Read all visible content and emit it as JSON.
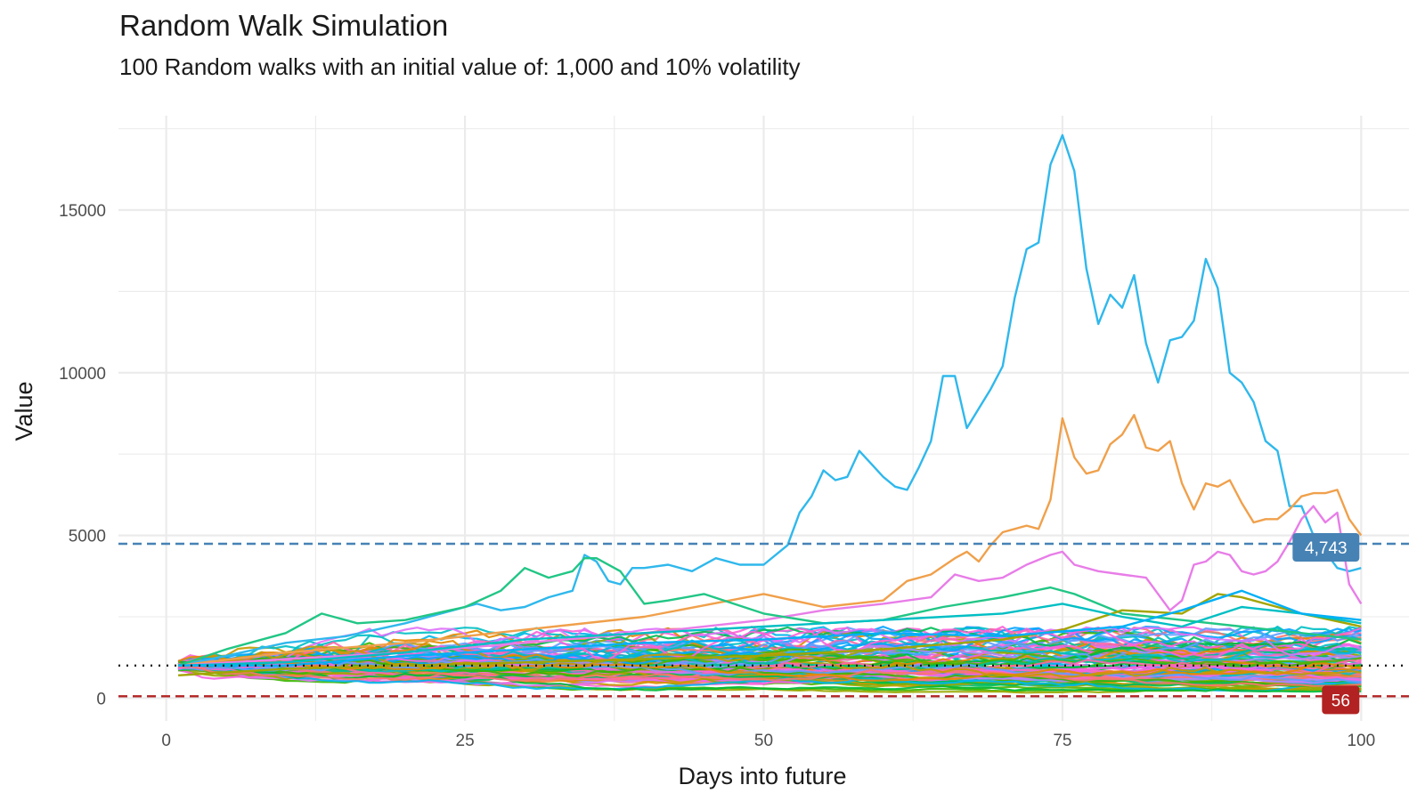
{
  "chart_data": {
    "type": "line",
    "title": "Random Walk Simulation",
    "subtitle": "100 Random walks with an initial value of: 1,000 and 10% volatility",
    "xlabel": "Days into future",
    "ylabel": "Value",
    "xlim": [
      -4,
      104
    ],
    "ylim": [
      -700,
      17900
    ],
    "x_ticks": [
      0,
      25,
      50,
      75,
      100
    ],
    "y_ticks": [
      0,
      5000,
      10000,
      15000
    ],
    "x_tick_labels": [
      "0",
      "25",
      "50",
      "75",
      "100"
    ],
    "y_tick_labels": [
      "0",
      "5000",
      "10000",
      "15000"
    ],
    "grid": true,
    "legend": "none",
    "n_walks": 100,
    "initial_value": 1000,
    "volatility_pct": 10,
    "reference_lines": [
      {
        "value": 4743,
        "label": "4,743",
        "style": "dashed",
        "color": "#4682b4"
      },
      {
        "value": 1000,
        "label": "",
        "style": "dotted",
        "color": "#1a1a1a"
      },
      {
        "value": 56,
        "label": "56",
        "style": "dashed",
        "color": "#b22222"
      }
    ],
    "highlighted_series": [
      {
        "color": "#2fb8ec",
        "x": [
          1,
          5,
          10,
          15,
          20,
          22,
          24,
          26,
          28,
          30,
          32,
          34,
          35,
          36,
          37,
          38,
          39,
          40,
          42,
          44,
          46,
          48,
          50,
          52,
          53,
          54,
          55,
          56,
          57,
          58,
          59,
          60,
          61,
          62,
          63,
          64,
          65,
          66,
          67,
          68,
          69,
          70,
          71,
          72,
          73,
          74,
          75,
          76,
          77,
          78,
          79,
          80,
          81,
          82,
          83,
          84,
          85,
          86,
          87,
          88,
          89,
          90,
          91,
          92,
          93,
          94,
          95,
          96,
          97,
          98,
          99,
          100
        ],
        "y": [
          1000,
          1300,
          1700,
          1900,
          2300,
          2500,
          2700,
          2900,
          2700,
          2800,
          3100,
          3300,
          4400,
          4200,
          3600,
          3500,
          4000,
          4000,
          4100,
          3900,
          4300,
          4100,
          4100,
          4700,
          5700,
          6200,
          7000,
          6700,
          6800,
          7600,
          7200,
          6800,
          6500,
          6400,
          7100,
          7900,
          9900,
          9900,
          8300,
          8900,
          9500,
          10200,
          12300,
          13800,
          14000,
          16400,
          17300,
          16200,
          13200,
          11500,
          12400,
          12000,
          13000,
          10900,
          9700,
          11000,
          11100,
          11600,
          13500,
          12600,
          10000,
          9700,
          9100,
          7900,
          7600,
          5900,
          5900,
          5000,
          4500,
          4000,
          3900,
          4000
        ]
      },
      {
        "color": "#f0a04b",
        "x": [
          1,
          10,
          20,
          30,
          40,
          50,
          55,
          60,
          62,
          64,
          66,
          67,
          68,
          69,
          70,
          71,
          72,
          73,
          74,
          75,
          76,
          77,
          78,
          79,
          80,
          81,
          82,
          83,
          84,
          85,
          86,
          87,
          88,
          89,
          90,
          91,
          92,
          93,
          94,
          95,
          96,
          97,
          98,
          99,
          100
        ],
        "y": [
          1000,
          1400,
          1700,
          2100,
          2500,
          3200,
          2800,
          3000,
          3600,
          3800,
          4300,
          4500,
          4200,
          4700,
          5100,
          5200,
          5300,
          5200,
          6100,
          8600,
          7400,
          6900,
          7000,
          7800,
          8100,
          8700,
          7700,
          7600,
          7900,
          6600,
          5800,
          6600,
          6500,
          6700,
          6000,
          5400,
          5500,
          5500,
          5800,
          6200,
          6300,
          6300,
          6400,
          5500,
          5000
        ]
      },
      {
        "color": "#e87de8",
        "x": [
          1,
          10,
          20,
          30,
          40,
          50,
          55,
          60,
          64,
          66,
          68,
          70,
          72,
          74,
          75,
          76,
          78,
          80,
          82,
          84,
          85,
          86,
          87,
          88,
          89,
          90,
          91,
          92,
          93,
          94,
          95,
          96,
          97,
          98,
          99,
          100
        ],
        "y": [
          1000,
          1200,
          1400,
          1700,
          2000,
          2400,
          2700,
          2900,
          3100,
          3800,
          3600,
          3700,
          4100,
          4400,
          4500,
          4100,
          3900,
          3800,
          3700,
          2700,
          3000,
          4100,
          4200,
          4500,
          4400,
          3900,
          3800,
          3900,
          4200,
          4800,
          5500,
          5900,
          5400,
          5700,
          3500,
          2900
        ]
      },
      {
        "color": "#21c685",
        "x": [
          1,
          5,
          10,
          13,
          16,
          20,
          25,
          28,
          30,
          32,
          34,
          35,
          36,
          38,
          40,
          42,
          45,
          50,
          55,
          60,
          65,
          70,
          74,
          76,
          78,
          80,
          85,
          90,
          95,
          100
        ],
        "y": [
          1000,
          1500,
          2000,
          2600,
          2300,
          2400,
          2800,
          3300,
          4000,
          3700,
          3900,
          4300,
          4300,
          3900,
          2900,
          3000,
          3200,
          2600,
          2300,
          2400,
          2800,
          3100,
          3400,
          3200,
          2900,
          2600,
          2400,
          2200,
          2000,
          1800
        ]
      },
      {
        "color": "#a3a500",
        "x": [
          1,
          10,
          20,
          30,
          40,
          50,
          60,
          70,
          75,
          80,
          85,
          88,
          90,
          95,
          100
        ],
        "y": [
          700,
          900,
          1000,
          1100,
          1200,
          1300,
          1500,
          1800,
          2100,
          2700,
          2600,
          3200,
          3100,
          2600,
          2200
        ]
      },
      {
        "color": "#00bfc4",
        "x": [
          1,
          10,
          20,
          30,
          40,
          50,
          60,
          70,
          75,
          80,
          85,
          90,
          95,
          100
        ],
        "y": [
          1000,
          1100,
          1400,
          1800,
          2000,
          2200,
          2400,
          2600,
          2900,
          2500,
          2200,
          2800,
          2600,
          2300
        ]
      },
      {
        "color": "#00b0f6",
        "x": [
          1,
          10,
          20,
          30,
          40,
          50,
          60,
          70,
          80,
          85,
          90,
          95,
          100
        ],
        "y": [
          1000,
          1000,
          1300,
          1500,
          1700,
          1800,
          2000,
          1900,
          2200,
          2700,
          3300,
          2600,
          2400
        ]
      }
    ]
  }
}
